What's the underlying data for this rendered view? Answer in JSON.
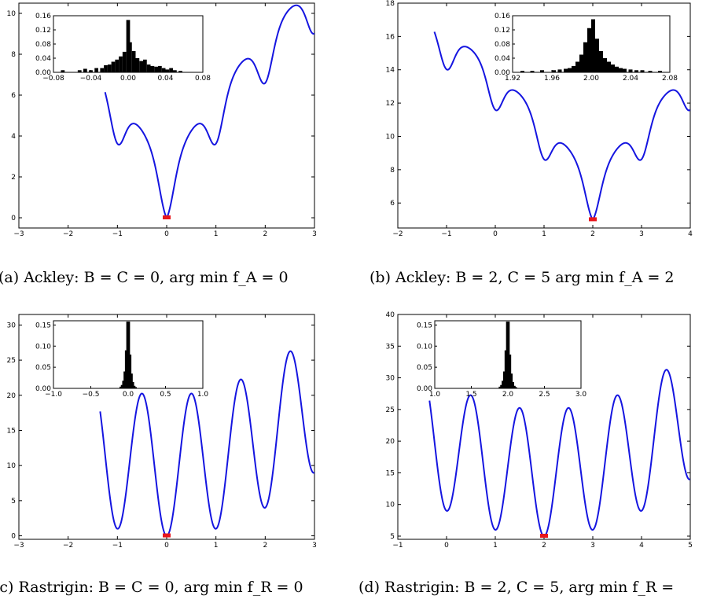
{
  "captions": {
    "a": "(a) Ackley: B = C = 0, arg min f_A = 0",
    "b": "(b) Ackley: B = 2, C = 5 arg min f_A = 2",
    "c": "(c) Rastrigin: B = C = 0, arg min f_R = 0",
    "d": "(d) Rastrigin: B = 2, C = 5, arg min f_R ="
  },
  "chart_data": [
    {
      "type": "line",
      "title": "",
      "xlabel": "",
      "ylabel": "",
      "function": "ackley",
      "B": 0,
      "C": 0,
      "xlim": [
        -3,
        3
      ],
      "ylim": [
        -0.5,
        10.5
      ],
      "x_range": [
        -1.25,
        3.0
      ],
      "xticks": [
        -3,
        -2,
        -1,
        0,
        1,
        2,
        3
      ],
      "yticks": [
        0,
        2,
        4,
        6,
        8,
        10
      ],
      "line_color": "#1515e0",
      "minimizer_marker": {
        "x": 0,
        "color": "#e8161c"
      },
      "inset": {
        "type": "histogram",
        "xlim": [
          -0.08,
          0.08
        ],
        "ylim": [
          0,
          0.16
        ],
        "xticks": [
          "−0.08",
          "−0.04",
          "0.00",
          "0.04",
          "0.08"
        ],
        "yticks": [
          "0.00",
          "0.04",
          "0.08",
          "0.12",
          "0.16"
        ],
        "bin_centers": [
          -0.07,
          -0.052,
          -0.046,
          -0.04,
          -0.034,
          -0.028,
          -0.024,
          -0.02,
          -0.016,
          -0.012,
          -0.008,
          -0.004,
          0.0,
          0.002,
          0.006,
          0.01,
          0.014,
          0.018,
          0.022,
          0.026,
          0.03,
          0.034,
          0.038,
          0.042,
          0.046,
          0.05,
          0.056
        ],
        "values": [
          0.006,
          0.006,
          0.01,
          0.006,
          0.012,
          0.012,
          0.02,
          0.022,
          0.03,
          0.036,
          0.045,
          0.058,
          0.148,
          0.085,
          0.06,
          0.04,
          0.032,
          0.036,
          0.022,
          0.018,
          0.016,
          0.018,
          0.012,
          0.008,
          0.012,
          0.006,
          0.004
        ]
      }
    },
    {
      "type": "line",
      "title": "",
      "xlabel": "",
      "ylabel": "",
      "function": "ackley",
      "B": 2,
      "C": 5,
      "xlim": [
        -2,
        4
      ],
      "ylim": [
        4.5,
        18
      ],
      "x_range": [
        -1.25,
        4.0
      ],
      "xticks": [
        -2,
        -1,
        0,
        1,
        2,
        3,
        4
      ],
      "yticks": [
        6,
        8,
        10,
        12,
        14,
        16,
        18
      ],
      "line_color": "#1515e0",
      "minimizer_marker": {
        "x": 2,
        "color": "#e8161c"
      },
      "inset": {
        "type": "histogram",
        "xlim": [
          1.92,
          2.08
        ],
        "ylim": [
          0,
          0.16
        ],
        "xticks": [
          "1.92",
          "1.96",
          "2.00",
          "2.04",
          "2.08"
        ],
        "yticks": [
          "0.00",
          "0.04",
          "0.08",
          "0.12",
          "0.16"
        ],
        "bin_centers": [
          1.93,
          1.94,
          1.95,
          1.962,
          1.968,
          1.974,
          1.978,
          1.982,
          1.986,
          1.99,
          1.994,
          1.998,
          2.002,
          2.006,
          2.01,
          2.014,
          2.018,
          2.022,
          2.026,
          2.03,
          2.034,
          2.04,
          2.046,
          2.052,
          2.06,
          2.07
        ],
        "values": [
          0.004,
          0.004,
          0.006,
          0.006,
          0.008,
          0.01,
          0.012,
          0.018,
          0.03,
          0.05,
          0.085,
          0.125,
          0.15,
          0.095,
          0.06,
          0.04,
          0.03,
          0.022,
          0.016,
          0.012,
          0.01,
          0.008,
          0.006,
          0.006,
          0.004,
          0.004
        ]
      }
    },
    {
      "type": "line",
      "title": "",
      "xlabel": "",
      "ylabel": "",
      "function": "rastrigin",
      "B": 0,
      "C": 0,
      "xlim": [
        -3,
        3
      ],
      "ylim": [
        -0.5,
        31.5
      ],
      "x_range": [
        -1.35,
        3.0
      ],
      "xticks": [
        -3,
        -2,
        -1,
        0,
        1,
        2,
        3
      ],
      "yticks": [
        0,
        5,
        10,
        15,
        20,
        25,
        30
      ],
      "line_color": "#1515e0",
      "minimizer_marker": {
        "x": 0,
        "color": "#e8161c"
      },
      "inset": {
        "type": "histogram",
        "xlim": [
          -1.1,
          1.1
        ],
        "ylim": [
          0,
          0.16
        ],
        "xticks": [
          "−1.0",
          "−0.5",
          "0.0",
          "0.5",
          "1.0"
        ],
        "yticks": [
          "0.00",
          "0.05",
          "0.10",
          "0.15"
        ],
        "bin_centers": [
          -0.1,
          -0.08,
          -0.06,
          -0.04,
          -0.02,
          0.0,
          0.02,
          0.04,
          0.06,
          0.08,
          0.1
        ],
        "values": [
          0.004,
          0.008,
          0.018,
          0.04,
          0.09,
          0.158,
          0.08,
          0.035,
          0.015,
          0.006,
          0.003
        ]
      }
    },
    {
      "type": "line",
      "title": "",
      "xlabel": "",
      "ylabel": "",
      "function": "rastrigin",
      "B": 2,
      "C": 5,
      "xlim": [
        -1,
        5
      ],
      "ylim": [
        4.5,
        40
      ],
      "x_range": [
        -0.35,
        5.0
      ],
      "xticks": [
        -1,
        0,
        1,
        2,
        3,
        4,
        5
      ],
      "yticks": [
        5,
        10,
        15,
        20,
        25,
        30,
        35,
        40
      ],
      "line_color": "#1515e0",
      "minimizer_marker": {
        "x": 2,
        "color": "#e8161c"
      },
      "inset": {
        "type": "histogram",
        "xlim": [
          1.0,
          3.0
        ],
        "ylim": [
          0,
          0.16
        ],
        "xticks": [
          "1.0",
          "1.5",
          "2.0",
          "2.5",
          "3.0"
        ],
        "yticks": [
          "0.00",
          "0.05",
          "0.10",
          "0.15"
        ],
        "bin_centers": [
          1.9,
          1.92,
          1.94,
          1.96,
          1.98,
          2.0,
          2.02,
          2.04,
          2.06,
          2.08,
          2.1
        ],
        "values": [
          0.004,
          0.008,
          0.018,
          0.04,
          0.09,
          0.158,
          0.08,
          0.035,
          0.015,
          0.006,
          0.003
        ]
      }
    }
  ]
}
